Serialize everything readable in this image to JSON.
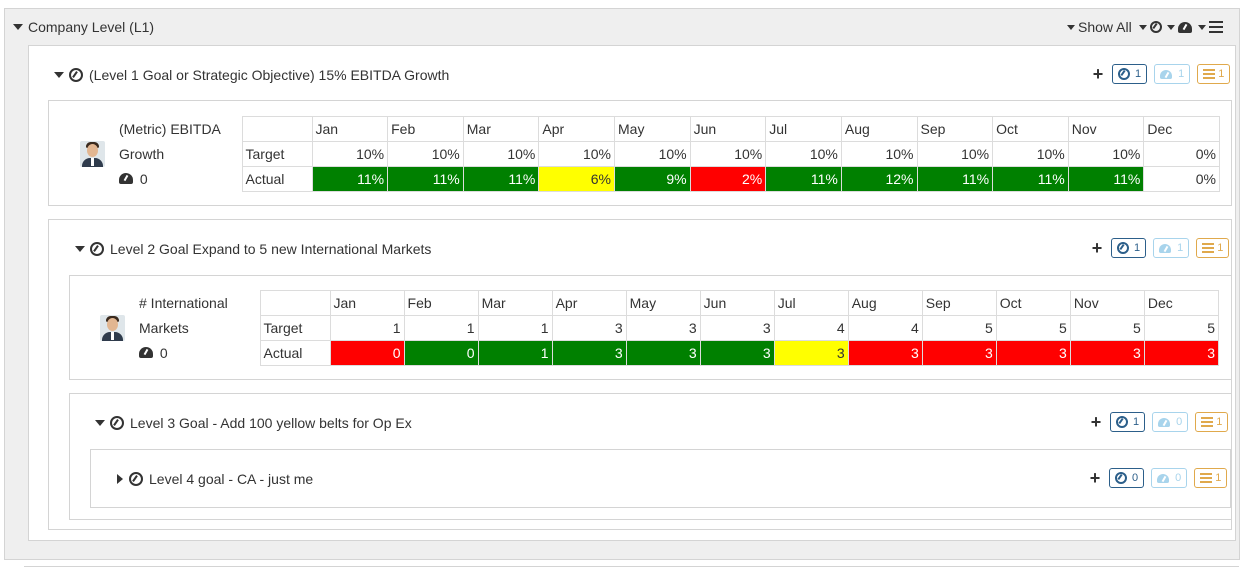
{
  "company": {
    "title": "Company Level (L1)",
    "show_all": "Show All"
  },
  "months": [
    "Jan",
    "Feb",
    "Mar",
    "Apr",
    "May",
    "Jun",
    "Jul",
    "Aug",
    "Sep",
    "Oct",
    "Nov",
    "Dec"
  ],
  "goals": {
    "l1": {
      "title": "(Level 1 Goal or Strategic Objective) 15% EBITDA Growth",
      "goal_count": "1",
      "metric_count": "1",
      "task_count": "1",
      "metric": {
        "name_line1": "(Metric) EBITDA",
        "name_line2": "Growth",
        "score": "0",
        "target_label": "Target",
        "actual_label": "Actual",
        "target": [
          "10%",
          "10%",
          "10%",
          "10%",
          "10%",
          "10%",
          "10%",
          "10%",
          "10%",
          "10%",
          "10%",
          "0%"
        ],
        "actual": [
          "11%",
          "11%",
          "11%",
          "6%",
          "9%",
          "2%",
          "11%",
          "12%",
          "11%",
          "11%",
          "11%",
          "0%"
        ],
        "status": [
          "green",
          "green",
          "green",
          "yellow",
          "green",
          "red",
          "green",
          "green",
          "green",
          "green",
          "green",
          "none"
        ]
      }
    },
    "l2": {
      "title": "Level 2 Goal Expand to 5 new International Markets",
      "goal_count": "1",
      "metric_count": "1",
      "task_count": "1",
      "metric": {
        "name_line1": "# International",
        "name_line2": "Markets",
        "score": "0",
        "target_label": "Target",
        "actual_label": "Actual",
        "target": [
          "1",
          "1",
          "1",
          "3",
          "3",
          "3",
          "4",
          "4",
          "5",
          "5",
          "5",
          "5"
        ],
        "actual": [
          "0",
          "0",
          "1",
          "3",
          "3",
          "3",
          "3",
          "3",
          "3",
          "3",
          "3",
          "3"
        ],
        "status": [
          "red",
          "green",
          "green",
          "green",
          "green",
          "green",
          "yellow",
          "red",
          "red",
          "red",
          "red",
          "red"
        ]
      }
    },
    "l3": {
      "title": "Level 3 Goal - Add 100 yellow belts for Op Ex",
      "goal_count": "1",
      "metric_count": "0",
      "task_count": "1"
    },
    "l4": {
      "title": "Level 4 goal - CA - just me",
      "goal_count": "0",
      "metric_count": "0",
      "task_count": "1"
    }
  },
  "colors": {
    "green": "#008000",
    "red": "#ff0000",
    "yellow": "#ffff00"
  }
}
